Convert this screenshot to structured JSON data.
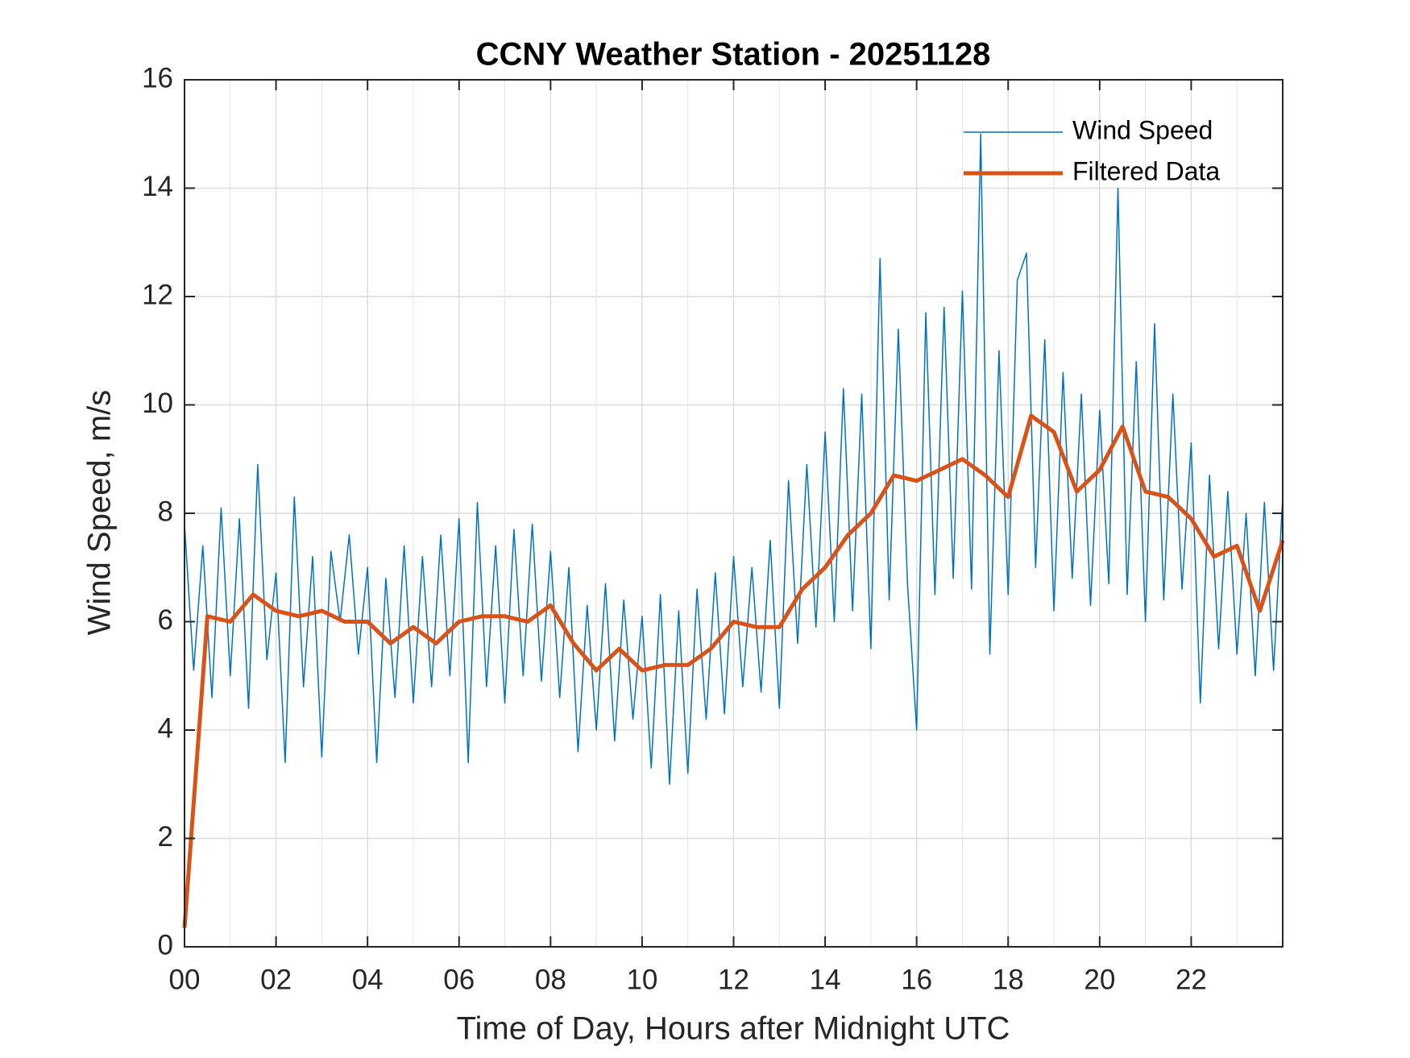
{
  "chart_data": {
    "type": "line",
    "title": "CCNY Weather Station - 20251128",
    "x_label": "Time of Day, Hours after Midnight UTC",
    "y_label": "Wind Speed, m/s",
    "xlim": [
      0,
      24
    ],
    "ylim": [
      0,
      16
    ],
    "xticks": [
      {
        "value": 0,
        "label": "00"
      },
      {
        "value": 2,
        "label": "02"
      },
      {
        "value": 4,
        "label": "04"
      },
      {
        "value": 6,
        "label": "06"
      },
      {
        "value": 8,
        "label": "08"
      },
      {
        "value": 10,
        "label": "10"
      },
      {
        "value": 12,
        "label": "12"
      },
      {
        "value": 14,
        "label": "14"
      },
      {
        "value": 16,
        "label": "16"
      },
      {
        "value": 18,
        "label": "18"
      },
      {
        "value": 20,
        "label": "20"
      },
      {
        "value": 22,
        "label": "22"
      }
    ],
    "yticks": [
      0,
      2,
      4,
      6,
      8,
      10,
      12,
      14,
      16
    ],
    "grid": true,
    "minor_grid": true,
    "legend": "upper-right",
    "series": [
      {
        "name": "Wind Speed",
        "color": "#0072bd",
        "width": 1.5,
        "x": [
          0,
          0.2,
          0.4,
          0.6,
          0.8,
          1,
          1.2,
          1.4,
          1.6,
          1.8,
          2,
          2.2,
          2.4,
          2.6,
          2.8,
          3,
          3.2,
          3.4,
          3.6,
          3.8,
          4,
          4.2,
          4.4,
          4.6,
          4.8,
          5,
          5.2,
          5.4,
          5.6,
          5.8,
          6,
          6.2,
          6.4,
          6.6,
          6.8,
          7,
          7.2,
          7.4,
          7.6,
          7.8,
          8,
          8.2,
          8.4,
          8.6,
          8.8,
          9,
          9.2,
          9.4,
          9.6,
          9.8,
          10,
          10.2,
          10.4,
          10.6,
          10.8,
          11,
          11.2,
          11.4,
          11.6,
          11.8,
          12,
          12.2,
          12.4,
          12.6,
          12.8,
          13,
          13.2,
          13.4,
          13.6,
          13.8,
          14,
          14.2,
          14.4,
          14.6,
          14.8,
          15,
          15.2,
          15.4,
          15.6,
          15.8,
          16,
          16.2,
          16.4,
          16.6,
          16.8,
          17,
          17.2,
          17.4,
          17.6,
          17.8,
          18,
          18.2,
          18.4,
          18.6,
          18.8,
          19,
          19.2,
          19.4,
          19.6,
          19.8,
          20,
          20.2,
          20.4,
          20.6,
          20.8,
          21,
          21.2,
          21.4,
          21.6,
          21.8,
          22,
          22.2,
          22.4,
          22.6,
          22.8,
          23,
          23.2,
          23.4,
          23.6,
          23.8,
          24
        ],
        "values": [
          7.8,
          5.1,
          7.4,
          4.6,
          8.1,
          5.0,
          7.9,
          4.4,
          8.9,
          5.3,
          6.9,
          3.4,
          8.3,
          4.8,
          7.2,
          3.5,
          7.3,
          6.0,
          7.6,
          5.4,
          7.0,
          3.4,
          6.8,
          4.6,
          7.4,
          4.5,
          7.2,
          4.8,
          7.6,
          5.0,
          7.9,
          3.4,
          8.2,
          4.8,
          7.4,
          4.5,
          7.7,
          5.0,
          7.8,
          4.9,
          7.3,
          4.6,
          7.0,
          3.6,
          6.3,
          4.0,
          6.7,
          3.8,
          6.4,
          4.2,
          6.1,
          3.3,
          6.5,
          3.0,
          6.2,
          3.2,
          6.6,
          4.2,
          6.9,
          4.3,
          7.2,
          4.8,
          7.0,
          4.7,
          7.5,
          4.4,
          8.6,
          5.6,
          8.9,
          5.9,
          9.5,
          6.0,
          10.3,
          6.2,
          10.2,
          5.5,
          12.7,
          6.4,
          11.4,
          6.7,
          4.0,
          11.7,
          6.5,
          11.8,
          6.8,
          12.1,
          6.6,
          15.0,
          5.4,
          11.0,
          6.5,
          12.3,
          12.8,
          7.0,
          11.2,
          6.2,
          10.6,
          6.8,
          10.2,
          6.3,
          9.9,
          6.7,
          14.0,
          6.5,
          10.8,
          6.0,
          11.5,
          6.4,
          10.2,
          6.6,
          9.3,
          4.5,
          8.7,
          5.5,
          8.4,
          5.4,
          8.0,
          5.0,
          8.2,
          5.1,
          8.3
        ]
      },
      {
        "name": "Filtered Data",
        "color": "#d95319",
        "width": 5,
        "x": [
          0,
          0.5,
          1,
          1.5,
          2,
          2.5,
          3,
          3.5,
          4,
          4.5,
          5,
          5.5,
          6,
          6.5,
          7,
          7.5,
          8,
          8.5,
          9,
          9.5,
          10,
          10.5,
          11,
          11.5,
          12,
          12.5,
          13,
          13.5,
          14,
          14.5,
          15,
          15.5,
          16,
          16.5,
          17,
          17.5,
          18,
          18.5,
          19,
          19.5,
          20,
          20.5,
          21,
          21.5,
          22,
          22.5,
          23,
          23.5,
          24
        ],
        "values": [
          0.35,
          6.1,
          6.0,
          6.5,
          6.2,
          6.1,
          6.2,
          6.0,
          6.0,
          5.6,
          5.9,
          5.6,
          6.0,
          6.1,
          6.1,
          6.0,
          6.3,
          5.6,
          5.1,
          5.5,
          5.1,
          5.2,
          5.2,
          5.5,
          6.0,
          5.9,
          5.9,
          6.6,
          7.0,
          7.6,
          8.0,
          8.7,
          8.6,
          8.8,
          9.0,
          8.7,
          8.3,
          9.8,
          9.5,
          8.4,
          8.8,
          9.6,
          8.4,
          8.3,
          7.9,
          7.2,
          7.4,
          6.2,
          7.5
        ]
      }
    ]
  }
}
